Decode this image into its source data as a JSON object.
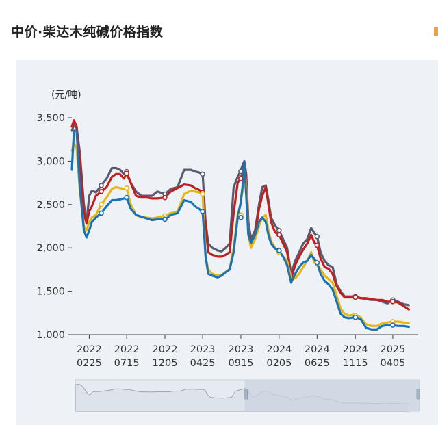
{
  "page": {
    "title": "中价·柴达木纯碱价格指数"
  },
  "chart_data": {
    "type": "line",
    "unit": "(元/吨)",
    "ylim": [
      1000,
      3500
    ],
    "yticks": [
      1000,
      1500,
      2000,
      2500,
      3000,
      3500
    ],
    "ytick_labels": [
      "1,000",
      "1,500",
      "2,000",
      "2,500",
      "3,000",
      "3,500"
    ],
    "xlim": [
      0,
      1300
    ],
    "xticks": [
      {
        "pos": 65,
        "line1": "2022",
        "line2": "0225"
      },
      {
        "pos": 205,
        "line1": "2022",
        "line2": "0715"
      },
      {
        "pos": 348,
        "line1": "2022",
        "line2": "1205"
      },
      {
        "pos": 489,
        "line1": "2023",
        "line2": "0425"
      },
      {
        "pos": 632,
        "line1": "2023",
        "line2": "0915"
      },
      {
        "pos": 775,
        "line1": "2024",
        "line2": "0205"
      },
      {
        "pos": 917,
        "line1": "2024",
        "line2": "0625"
      },
      {
        "pos": 1060,
        "line1": "2024",
        "line2": "1115"
      },
      {
        "pos": 1200,
        "line1": "2025",
        "line2": "0405"
      }
    ],
    "grid": false,
    "series": [
      {
        "color": "#5a5a6e",
        "x": [
          0,
          8,
          18,
          30,
          45,
          55,
          65,
          75,
          90,
          110,
          130,
          150,
          165,
          180,
          195,
          205,
          220,
          240,
          260,
          280,
          300,
          320,
          348,
          370,
          395,
          420,
          445,
          460,
          475,
          489,
          500,
          510,
          525,
          545,
          560,
          575,
          590,
          605,
          620,
          630,
          638,
          645,
          652,
          660,
          670,
          685,
          700,
          712,
          725,
          735,
          745,
          760,
          775,
          790,
          805,
          820,
          835,
          850,
          865,
          880,
          895,
          907,
          917,
          930,
          945,
          960,
          975,
          990,
          1005,
          1020,
          1035,
          1060,
          1080,
          1100,
          1120,
          1140,
          1160,
          1180,
          1200,
          1220,
          1240,
          1260
        ],
        "y": [
          3350,
          3420,
          3380,
          3100,
          2500,
          2300,
          2600,
          2660,
          2640,
          2720,
          2800,
          2920,
          2920,
          2900,
          2850,
          2880,
          2750,
          2650,
          2600,
          2600,
          2600,
          2650,
          2620,
          2680,
          2700,
          2900,
          2900,
          2880,
          2870,
          2850,
          2300,
          2050,
          2000,
          1970,
          1960,
          2000,
          2050,
          2700,
          2820,
          2880,
          2950,
          3000,
          2850,
          2300,
          2100,
          2200,
          2500,
          2700,
          2720,
          2550,
          2350,
          2260,
          2200,
          2100,
          2000,
          1700,
          1850,
          1950,
          2050,
          2100,
          2230,
          2170,
          2130,
          1950,
          1850,
          1800,
          1780,
          1580,
          1500,
          1440,
          1440,
          1440,
          1420,
          1410,
          1400,
          1400,
          1380,
          1360,
          1400,
          1380,
          1350,
          1340
        ]
      },
      {
        "color": "#c0201e",
        "x": [
          0,
          8,
          18,
          30,
          45,
          55,
          65,
          75,
          90,
          110,
          130,
          150,
          165,
          180,
          195,
          205,
          220,
          240,
          260,
          280,
          300,
          320,
          348,
          370,
          395,
          420,
          445,
          460,
          475,
          489,
          500,
          510,
          525,
          545,
          560,
          575,
          590,
          605,
          620,
          630,
          638,
          645,
          652,
          660,
          670,
          685,
          700,
          712,
          725,
          735,
          745,
          760,
          775,
          790,
          805,
          820,
          835,
          850,
          865,
          880,
          895,
          907,
          917,
          930,
          945,
          960,
          975,
          990,
          1005,
          1020,
          1035,
          1060,
          1080,
          1100,
          1120,
          1140,
          1160,
          1180,
          1200,
          1220,
          1240,
          1260
        ],
        "y": [
          3400,
          3470,
          3400,
          3000,
          2400,
          2280,
          2420,
          2480,
          2600,
          2650,
          2700,
          2820,
          2850,
          2850,
          2800,
          2860,
          2750,
          2600,
          2580,
          2580,
          2570,
          2570,
          2580,
          2650,
          2690,
          2730,
          2720,
          2690,
          2670,
          2640,
          2250,
          1950,
          1920,
          1900,
          1900,
          1920,
          1950,
          2400,
          2750,
          2800,
          2860,
          2950,
          2800,
          2200,
          2050,
          2150,
          2450,
          2600,
          2700,
          2500,
          2300,
          2180,
          2150,
          2050,
          1950,
          1650,
          1800,
          1900,
          1980,
          2050,
          2150,
          2060,
          2030,
          1880,
          1780,
          1760,
          1700,
          1560,
          1480,
          1430,
          1430,
          1430,
          1420,
          1420,
          1410,
          1400,
          1400,
          1380,
          1380,
          1370,
          1330,
          1290
        ]
      },
      {
        "color": "#e3b716",
        "x": [
          0,
          8,
          18,
          30,
          45,
          55,
          65,
          75,
          90,
          110,
          130,
          150,
          165,
          180,
          195,
          205,
          220,
          240,
          260,
          280,
          300,
          320,
          348,
          370,
          395,
          420,
          445,
          460,
          475,
          489,
          500,
          510,
          525,
          545,
          560,
          575,
          590,
          605,
          620,
          630,
          638,
          645,
          652,
          660,
          670,
          685,
          700,
          712,
          725,
          735,
          745,
          760,
          775,
          790,
          805,
          820,
          835,
          850,
          865,
          880,
          895,
          907,
          917,
          930,
          945,
          960,
          975,
          990,
          1005,
          1020,
          1035,
          1060,
          1080,
          1100,
          1120,
          1140,
          1160,
          1180,
          1200,
          1220,
          1240,
          1260
        ],
        "y": [
          3120,
          3200,
          3150,
          2650,
          2250,
          2200,
          2300,
          2350,
          2380,
          2500,
          2580,
          2680,
          2700,
          2690,
          2680,
          2690,
          2500,
          2380,
          2350,
          2350,
          2340,
          2350,
          2370,
          2400,
          2420,
          2620,
          2660,
          2650,
          2640,
          2620,
          1900,
          1750,
          1700,
          1680,
          1690,
          1720,
          1760,
          2000,
          2380,
          2500,
          2650,
          2950,
          2700,
          2150,
          2000,
          2100,
          2250,
          2350,
          2380,
          2200,
          2080,
          2000,
          1950,
          1900,
          1850,
          1650,
          1650,
          1700,
          1780,
          1850,
          1950,
          1830,
          1820,
          1750,
          1680,
          1640,
          1600,
          1450,
          1300,
          1240,
          1220,
          1230,
          1200,
          1120,
          1100,
          1100,
          1130,
          1140,
          1150,
          1150,
          1140,
          1130
        ]
      },
      {
        "color": "#1a73b5",
        "x": [
          0,
          8,
          18,
          30,
          45,
          55,
          65,
          75,
          90,
          110,
          130,
          150,
          165,
          180,
          195,
          205,
          220,
          240,
          260,
          280,
          300,
          320,
          348,
          370,
          395,
          420,
          445,
          460,
          475,
          489,
          500,
          510,
          525,
          545,
          560,
          575,
          590,
          605,
          620,
          630,
          638,
          645,
          652,
          660,
          670,
          685,
          700,
          712,
          725,
          735,
          745,
          760,
          775,
          790,
          805,
          820,
          835,
          850,
          865,
          880,
          895,
          907,
          917,
          930,
          945,
          960,
          975,
          990,
          1005,
          1020,
          1035,
          1060,
          1080,
          1100,
          1120,
          1140,
          1160,
          1180,
          1200,
          1220,
          1240,
          1260
        ],
        "y": [
          2900,
          3350,
          3350,
          2700,
          2200,
          2120,
          2200,
          2300,
          2350,
          2400,
          2480,
          2550,
          2550,
          2560,
          2570,
          2580,
          2450,
          2380,
          2360,
          2340,
          2320,
          2330,
          2330,
          2380,
          2400,
          2550,
          2530,
          2480,
          2450,
          2420,
          1900,
          1700,
          1680,
          1660,
          1680,
          1720,
          1750,
          1950,
          2350,
          2500,
          2700,
          2980,
          2600,
          2150,
          2060,
          2150,
          2300,
          2350,
          2300,
          2150,
          2050,
          1990,
          1970,
          1900,
          1800,
          1600,
          1700,
          1780,
          1830,
          1850,
          1920,
          1870,
          1830,
          1700,
          1620,
          1580,
          1520,
          1380,
          1240,
          1200,
          1190,
          1200,
          1180,
          1080,
          1060,
          1060,
          1100,
          1110,
          1110,
          1100,
          1100,
          1090
        ]
      }
    ],
    "markers": [
      {
        "series": 0,
        "x": 110,
        "y": 2720
      },
      {
        "series": 0,
        "x": 205,
        "y": 2880
      },
      {
        "series": 0,
        "x": 348,
        "y": 2620
      },
      {
        "series": 0,
        "x": 489,
        "y": 2850
      },
      {
        "series": 0,
        "x": 632,
        "y": 2880
      },
      {
        "series": 0,
        "x": 775,
        "y": 2200
      },
      {
        "series": 0,
        "x": 917,
        "y": 2130
      },
      {
        "series": 0,
        "x": 1060,
        "y": 1440
      },
      {
        "series": 0,
        "x": 1200,
        "y": 1400
      },
      {
        "series": 1,
        "x": 110,
        "y": 2650
      },
      {
        "series": 1,
        "x": 205,
        "y": 2860
      },
      {
        "series": 1,
        "x": 348,
        "y": 2580
      },
      {
        "series": 1,
        "x": 489,
        "y": 2640
      },
      {
        "series": 1,
        "x": 632,
        "y": 2800
      },
      {
        "series": 1,
        "x": 775,
        "y": 2150
      },
      {
        "series": 1,
        "x": 917,
        "y": 2030
      },
      {
        "series": 1,
        "x": 1060,
        "y": 1430
      },
      {
        "series": 1,
        "x": 1200,
        "y": 1380
      },
      {
        "series": 2,
        "x": 110,
        "y": 2500
      },
      {
        "series": 2,
        "x": 205,
        "y": 2690
      },
      {
        "series": 2,
        "x": 348,
        "y": 2370
      },
      {
        "series": 2,
        "x": 489,
        "y": 2620
      },
      {
        "series": 2,
        "x": 632,
        "y": 2380
      },
      {
        "series": 2,
        "x": 775,
        "y": 1950
      },
      {
        "series": 2,
        "x": 917,
        "y": 1820
      },
      {
        "series": 2,
        "x": 1060,
        "y": 1220
      },
      {
        "series": 2,
        "x": 1200,
        "y": 1150
      },
      {
        "series": 3,
        "x": 110,
        "y": 2400
      },
      {
        "series": 3,
        "x": 205,
        "y": 2580
      },
      {
        "series": 3,
        "x": 348,
        "y": 2330
      },
      {
        "series": 3,
        "x": 489,
        "y": 2420
      },
      {
        "series": 3,
        "x": 632,
        "y": 2350
      },
      {
        "series": 3,
        "x": 775,
        "y": 1970
      },
      {
        "series": 3,
        "x": 917,
        "y": 1830
      },
      {
        "series": 3,
        "x": 1060,
        "y": 1200
      },
      {
        "series": 3,
        "x": 1200,
        "y": 1110
      }
    ],
    "overview": {
      "selection_start": 640,
      "selection_end": 1300,
      "line_color": "#9aa3ad",
      "area_color": "#dde3ea",
      "selection_color": "#c9d3df"
    }
  }
}
